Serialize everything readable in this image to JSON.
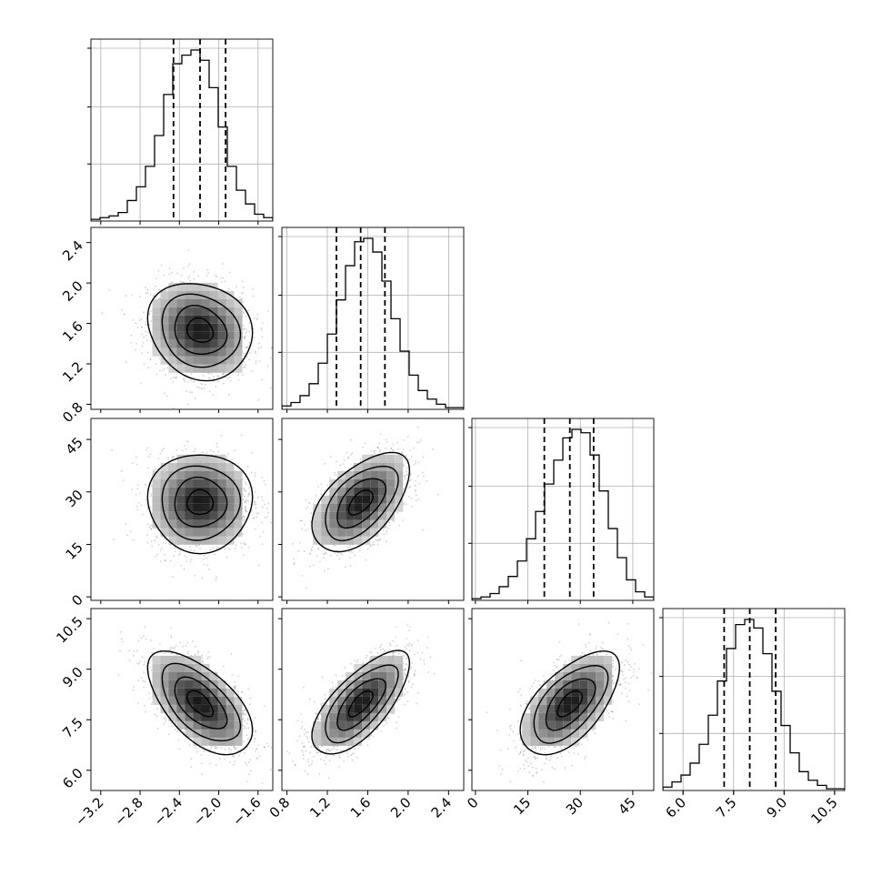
{
  "chart_data": {
    "type": "corner",
    "description_source": "corner plot of 4 parameters: 1D marginal histograms on the diagonal with dashed quantile lines, 2D density histograms with contours below the diagonal",
    "parameters": [
      {
        "label": "",
        "range": [
          -3.3,
          -1.45
        ],
        "median": -2.19,
        "q16": -2.46,
        "q84": -1.93,
        "ticks": [
          -3.2,
          -2.8,
          -2.4,
          -2.0,
          -1.6
        ],
        "tick_labels": [
          "−3.2",
          "−2.8",
          "−2.4",
          "−2.0",
          "−1.6"
        ]
      },
      {
        "label": "",
        "range": [
          0.75,
          2.55
        ],
        "median": 1.53,
        "q16": 1.29,
        "q84": 1.77,
        "ticks": [
          0.8,
          1.2,
          1.6,
          2.0,
          2.4
        ],
        "tick_labels": [
          "0.8",
          "1.2",
          "1.6",
          "2.0",
          "2.4"
        ]
      },
      {
        "label": "",
        "range": [
          -1,
          51
        ],
        "median": 27.0,
        "q16": 19.7,
        "q84": 33.8,
        "ticks": [
          0,
          15,
          30,
          45
        ],
        "tick_labels": [
          "0",
          "15",
          "30",
          "45"
        ]
      },
      {
        "label": "",
        "range": [
          5.4,
          10.8
        ],
        "median": 7.98,
        "q16": 7.22,
        "q84": 8.75,
        "ticks": [
          6.0,
          7.5,
          9.0,
          10.5
        ],
        "tick_labels": [
          "6.0",
          "7.5",
          "9.0",
          "10.5"
        ]
      }
    ],
    "histograms": [
      [
        0.01,
        0.02,
        0.03,
        0.05,
        0.12,
        0.2,
        0.32,
        0.5,
        0.74,
        0.92,
        0.97,
        1.0,
        0.94,
        0.78,
        0.55,
        0.32,
        0.18,
        0.1,
        0.04,
        0.02
      ],
      [
        0.02,
        0.04,
        0.08,
        0.15,
        0.27,
        0.44,
        0.64,
        0.84,
        0.98,
        1.0,
        0.92,
        0.75,
        0.53,
        0.34,
        0.2,
        0.11,
        0.06,
        0.03,
        0.01,
        0.01
      ],
      [
        0.01,
        0.02,
        0.04,
        0.08,
        0.14,
        0.23,
        0.36,
        0.52,
        0.68,
        0.82,
        0.95,
        1.0,
        0.98,
        0.85,
        0.64,
        0.42,
        0.25,
        0.12,
        0.05,
        0.02
      ],
      [
        0.02,
        0.05,
        0.09,
        0.16,
        0.27,
        0.44,
        0.64,
        0.83,
        0.97,
        1.0,
        0.95,
        0.8,
        0.58,
        0.38,
        0.22,
        0.11,
        0.06,
        0.03,
        0.01,
        0.01
      ]
    ],
    "correlations": {
      "1-0": -0.15,
      "2-0": 0.0,
      "2-1": 0.55,
      "3-0": -0.6,
      "3-1": 0.7,
      "3-2": 0.6
    },
    "contour_levels": [
      0.5,
      1.0,
      1.5,
      2.0
    ],
    "grid": true,
    "legend": "none",
    "title": ""
  }
}
